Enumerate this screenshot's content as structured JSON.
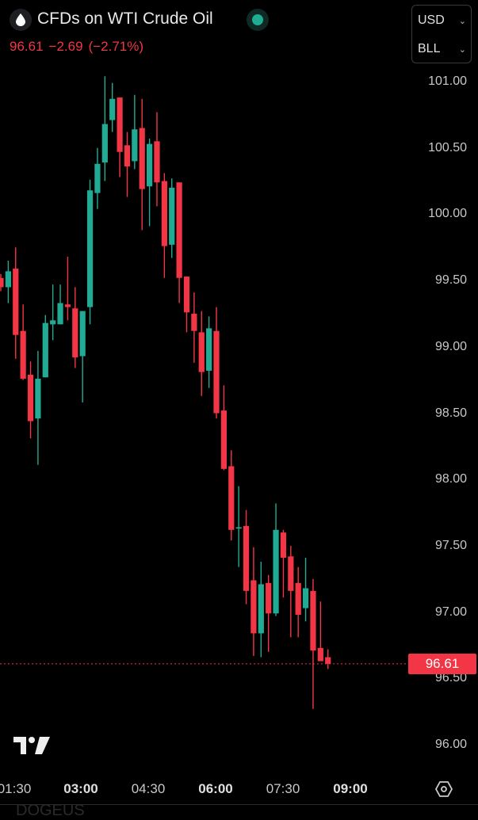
{
  "header": {
    "symbol_icon": "droplet-icon",
    "title": "CFDs on WTI Crude Oil",
    "market_status_icon": "market-open-dot-icon",
    "last": "96.61",
    "change": "−2.69",
    "change_pct": "(−2.71%)",
    "currency": "USD",
    "unit": "BLL"
  },
  "colors": {
    "up": "#22ab94",
    "down": "#f23645",
    "background": "#000000"
  },
  "price_axis": [
    "101.00",
    "100.50",
    "100.00",
    "99.50",
    "99.00",
    "98.50",
    "98.00",
    "97.50",
    "97.00",
    "96.50",
    "96.00"
  ],
  "last_price_label": "96.61",
  "time_axis": [
    {
      "label": "01:30",
      "bold": false
    },
    {
      "label": "03:00",
      "bold": true
    },
    {
      "label": "04:30",
      "bold": false
    },
    {
      "label": "06:00",
      "bold": true
    },
    {
      "label": "07:30",
      "bold": false
    },
    {
      "label": "09:00",
      "bold": true
    }
  ],
  "footer_text": "DOGEUS",
  "chart_data": {
    "type": "candlestick",
    "ylim": [
      96.0,
      101.0
    ],
    "last_price": 96.61,
    "grid": false,
    "candles": [
      [
        99.52,
        99.55,
        99.42,
        99.45
      ],
      [
        99.45,
        99.65,
        99.33,
        99.57
      ],
      [
        99.59,
        99.75,
        98.91,
        99.09
      ],
      [
        99.12,
        99.32,
        98.75,
        98.76
      ],
      [
        98.79,
        98.89,
        98.31,
        98.44
      ],
      [
        98.46,
        98.97,
        98.11,
        98.76
      ],
      [
        98.77,
        99.24,
        98.77,
        99.18
      ],
      [
        99.17,
        99.47,
        99.05,
        99.2
      ],
      [
        99.17,
        99.47,
        99.17,
        99.33
      ],
      [
        99.32,
        99.68,
        99.2,
        99.3
      ],
      [
        99.29,
        99.45,
        98.84,
        98.92
      ],
      [
        98.93,
        99.27,
        98.58,
        99.27
      ],
      [
        99.3,
        100.26,
        99.17,
        100.18
      ],
      [
        100.16,
        100.5,
        100.04,
        100.38
      ],
      [
        100.39,
        101.04,
        100.25,
        100.68
      ],
      [
        100.71,
        100.99,
        100.62,
        100.87
      ],
      [
        100.88,
        100.88,
        100.28,
        100.47
      ],
      [
        100.52,
        100.62,
        100.13,
        100.36
      ],
      [
        100.4,
        100.9,
        100.34,
        100.64
      ],
      [
        100.65,
        100.87,
        99.88,
        100.19
      ],
      [
        100.21,
        100.57,
        99.91,
        100.53
      ],
      [
        100.55,
        100.77,
        100.06,
        100.24
      ],
      [
        100.25,
        100.31,
        99.52,
        99.76
      ],
      [
        99.77,
        100.27,
        99.67,
        100.2
      ],
      [
        100.24,
        100.24,
        99.33,
        99.52
      ],
      [
        99.53,
        99.53,
        99.11,
        99.26
      ],
      [
        99.25,
        99.41,
        98.88,
        99.12
      ],
      [
        99.11,
        99.27,
        98.63,
        98.81
      ],
      [
        98.82,
        99.23,
        98.69,
        99.14
      ],
      [
        99.12,
        99.3,
        98.46,
        98.5
      ],
      [
        98.52,
        98.71,
        98.07,
        98.08
      ],
      [
        98.1,
        98.22,
        97.54,
        97.62
      ],
      [
        97.63,
        97.95,
        97.34,
        97.64
      ],
      [
        97.65,
        97.77,
        97.06,
        97.16
      ],
      [
        97.24,
        97.49,
        96.67,
        96.84
      ],
      [
        96.84,
        97.38,
        96.66,
        97.21
      ],
      [
        97.22,
        97.28,
        96.7,
        96.99
      ],
      [
        96.99,
        97.82,
        96.97,
        97.62
      ],
      [
        97.6,
        97.62,
        97.11,
        97.41
      ],
      [
        97.42,
        97.5,
        96.81,
        97.16
      ],
      [
        97.22,
        97.34,
        96.81,
        96.98
      ],
      [
        97.03,
        97.41,
        96.93,
        97.18
      ],
      [
        97.16,
        97.25,
        96.27,
        96.71
      ],
      [
        96.73,
        97.08,
        96.63,
        96.63
      ],
      [
        96.66,
        96.72,
        96.57,
        96.61
      ]
    ]
  }
}
